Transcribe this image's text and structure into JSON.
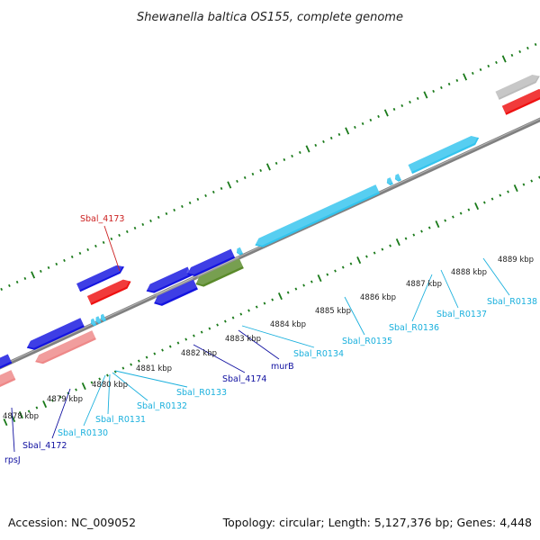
{
  "title": "Shewanella baltica OS155, complete genome",
  "footer": {
    "accession": "Accession: NC_009052",
    "summary": "Topology: circular; Length: 5,127,376 bp; Genes: 4,448"
  },
  "colors": {
    "backbone": "#808080",
    "tick": "#1a7a1a",
    "cds": "#1414e0",
    "cds_label": "#1010a0",
    "rrna": "#ee1111",
    "rrna_label": "#cc2222",
    "pseudo": "#ee8888",
    "trna": "#33c4ee",
    "trna_label": "#1ab0dd",
    "highlight": "#5a8a2a",
    "other": "#bbbbbb"
  },
  "position_labels": [
    "4878 kbp",
    "4879 kbp",
    "4880 kbp",
    "4881 kbp",
    "4882 kbp",
    "4883 kbp",
    "4884 kbp",
    "4885 kbp",
    "4886 kbp",
    "4887 kbp",
    "4888 kbp",
    "4889 kbp"
  ],
  "features": [
    {
      "name": "rpsJ",
      "type": "cds"
    },
    {
      "name": "Sbal_4172",
      "type": "cds"
    },
    {
      "name": "Sbal_R0130",
      "type": "trna"
    },
    {
      "name": "Sbal_R0131",
      "type": "trna"
    },
    {
      "name": "Sbal_R0132",
      "type": "trna"
    },
    {
      "name": "Sbal_R0133",
      "type": "trna"
    },
    {
      "name": "Sbal_4174",
      "type": "cds"
    },
    {
      "name": "murB",
      "type": "cds"
    },
    {
      "name": "Sbal_R0134",
      "type": "trna"
    },
    {
      "name": "Sbal_R0135",
      "type": "trna"
    },
    {
      "name": "Sbal_R0136",
      "type": "trna"
    },
    {
      "name": "Sbal_R0137",
      "type": "trna"
    },
    {
      "name": "Sbal_R0138",
      "type": "trna"
    },
    {
      "name": "Sbal_4173",
      "type": "rrna"
    }
  ]
}
